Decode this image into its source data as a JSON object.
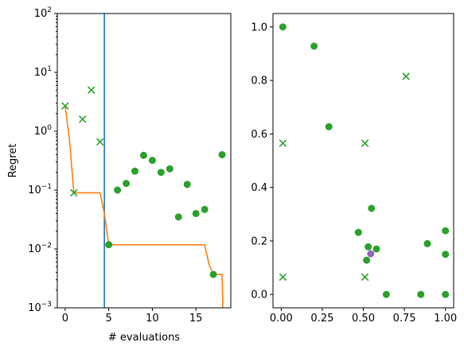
{
  "colors": {
    "best_so_far": "#ff7f0e",
    "vline": "#1f77b4",
    "points": "#2ca02c",
    "highlight": "#9467bd"
  },
  "chart_data": [
    {
      "type": "scatter",
      "xlabel": "# evaluations",
      "ylabel": "Regret",
      "yscale": "log",
      "xlim": [
        -0.9,
        19.0
      ],
      "ylim": [
        0.001,
        100
      ],
      "xticks": [
        0,
        5,
        10,
        15
      ],
      "xtick_labels": [
        "0",
        "5",
        "10",
        "15"
      ],
      "yticks": [
        0.001,
        0.01,
        0.1,
        1,
        10,
        100
      ],
      "ytick_labels_base": [
        "10",
        "10",
        "10",
        "10",
        "10",
        "10"
      ],
      "ytick_labels_exp": [
        "−3",
        "−2",
        "−1",
        "0",
        "1",
        "2"
      ],
      "vline_x": 4.5,
      "best_so_far_line": {
        "x": [
          0,
          0.5,
          1,
          2,
          3,
          4,
          4.5,
          5,
          6,
          7,
          8,
          9,
          10,
          11,
          12,
          13,
          14,
          15,
          16,
          16.5,
          17,
          17.5,
          18,
          18.1
        ],
        "y": [
          2.7,
          0.7,
          0.09,
          0.09,
          0.09,
          0.09,
          0.04,
          0.0118,
          0.0118,
          0.0118,
          0.0118,
          0.0118,
          0.0118,
          0.0118,
          0.0118,
          0.0118,
          0.0118,
          0.0118,
          0.0118,
          0.0055,
          0.0037,
          0.0037,
          0.0037,
          0.0008
        ]
      },
      "x_markers": [
        {
          "x": 0,
          "y": 2.7
        },
        {
          "x": 1,
          "y": 0.09
        },
        {
          "x": 2,
          "y": 1.6
        },
        {
          "x": 3,
          "y": 5.0
        },
        {
          "x": 4,
          "y": 0.66
        }
      ],
      "circle_markers": [
        {
          "x": 5,
          "y": 0.0118
        },
        {
          "x": 6,
          "y": 0.1
        },
        {
          "x": 7,
          "y": 0.13
        },
        {
          "x": 8,
          "y": 0.21
        },
        {
          "x": 9,
          "y": 0.39
        },
        {
          "x": 10,
          "y": 0.32
        },
        {
          "x": 11,
          "y": 0.2
        },
        {
          "x": 12,
          "y": 0.23
        },
        {
          "x": 13,
          "y": 0.035
        },
        {
          "x": 14,
          "y": 0.125
        },
        {
          "x": 15,
          "y": 0.04
        },
        {
          "x": 16,
          "y": 0.047
        },
        {
          "x": 17,
          "y": 0.0037
        },
        {
          "x": 18,
          "y": 0.4
        }
      ]
    },
    {
      "type": "scatter",
      "xlim": [
        -0.05,
        1.05
      ],
      "ylim": [
        -0.05,
        1.05
      ],
      "xticks": [
        0.0,
        0.25,
        0.5,
        0.75,
        1.0
      ],
      "xtick_labels": [
        "0.00",
        "0.25",
        "0.50",
        "0.75",
        "1.00"
      ],
      "yticks": [
        0.0,
        0.2,
        0.4,
        0.6,
        0.8,
        1.0
      ],
      "ytick_labels": [
        "0.0",
        "0.2",
        "0.4",
        "0.6",
        "0.8",
        "1.0"
      ],
      "x_markers": [
        {
          "x": 0.01,
          "y": 0.565
        },
        {
          "x": 0.01,
          "y": 0.065
        },
        {
          "x": 0.51,
          "y": 0.565
        },
        {
          "x": 0.51,
          "y": 0.065
        },
        {
          "x": 0.76,
          "y": 0.815
        }
      ],
      "circle_markers": [
        {
          "x": 0.01,
          "y": 1.0
        },
        {
          "x": 0.2,
          "y": 0.928
        },
        {
          "x": 0.29,
          "y": 0.627
        },
        {
          "x": 0.47,
          "y": 0.232
        },
        {
          "x": 0.52,
          "y": 0.128
        },
        {
          "x": 0.53,
          "y": 0.178
        },
        {
          "x": 0.55,
          "y": 0.322
        },
        {
          "x": 0.58,
          "y": 0.17
        },
        {
          "x": 0.64,
          "y": 0.0
        },
        {
          "x": 0.85,
          "y": 0.0
        },
        {
          "x": 0.89,
          "y": 0.19
        },
        {
          "x": 1.0,
          "y": 0.238
        },
        {
          "x": 1.0,
          "y": 0.15
        },
        {
          "x": 1.0,
          "y": 0.0
        }
      ],
      "highlight_markers": [
        {
          "x": 0.545,
          "y": 0.152
        }
      ]
    }
  ]
}
